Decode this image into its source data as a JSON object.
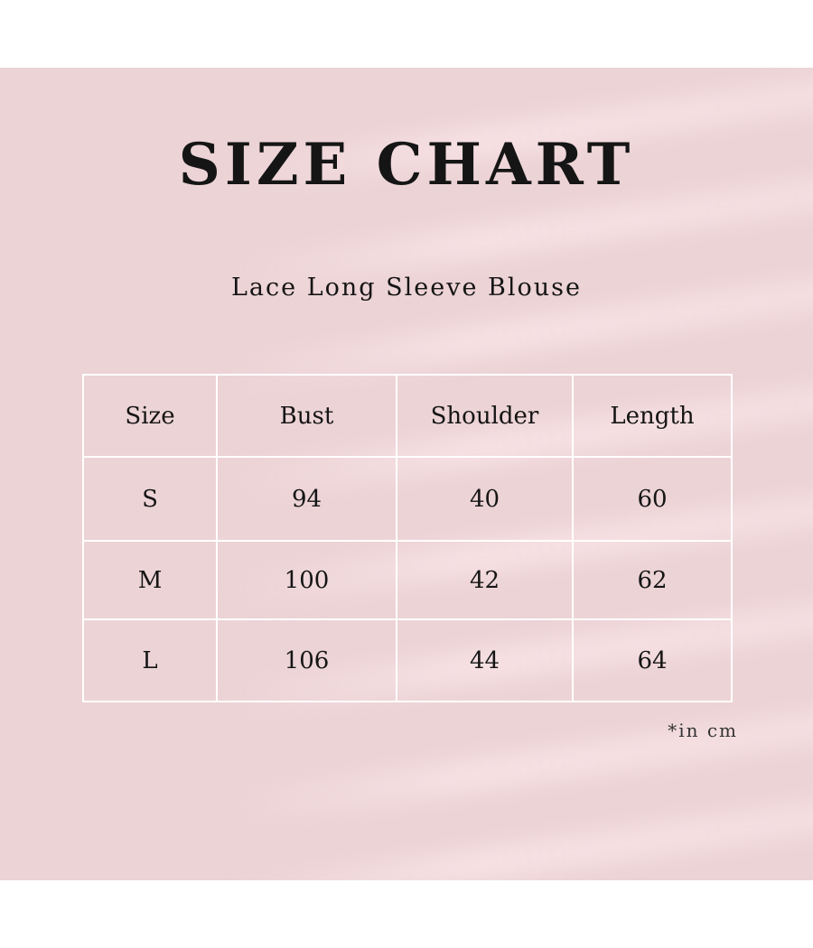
{
  "title": "SIZE CHART",
  "subtitle": "Lace Long Sleeve Blouse",
  "colors": {
    "background": "#ecd3d6",
    "grid_lines": "#ffffff",
    "text": "#151515"
  },
  "table": {
    "headers": [
      "Size",
      "Bust",
      "Shoulder",
      "Length"
    ],
    "rows": [
      [
        "S",
        "94",
        "40",
        "60"
      ],
      [
        "M",
        "100",
        "42",
        "62"
      ],
      [
        "L",
        "106",
        "44",
        "64"
      ]
    ]
  },
  "footnote": "*in cm"
}
